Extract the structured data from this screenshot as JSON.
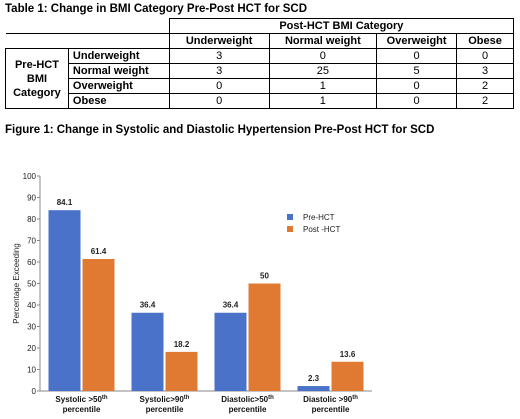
{
  "table": {
    "caption": "Table 1: Change in BMI Category Pre-Post HCT for SCD",
    "col_group_header": "Post-HCT BMI Category",
    "row_group_header": "Pre-HCT BMI Category",
    "columns": [
      "Underweight",
      "Normal weight",
      "Overweight",
      "Obese"
    ],
    "rows": [
      {
        "label": "Underweight",
        "values": [
          "3",
          "0",
          "0",
          "0"
        ]
      },
      {
        "label": "Normal weight",
        "values": [
          "3",
          "25",
          "5",
          "3"
        ]
      },
      {
        "label": "Overweight",
        "values": [
          "0",
          "1",
          "0",
          "2"
        ]
      },
      {
        "label": "Obese",
        "values": [
          "0",
          "1",
          "0",
          "2"
        ]
      }
    ]
  },
  "figure": {
    "caption": "Figure 1: Change in Systolic and Diastolic Hypertension Pre-Post HCT for SCD"
  },
  "colors": {
    "pre": "#4a72c8",
    "post": "#e07a33"
  },
  "chart_data": {
    "type": "bar",
    "title": "",
    "xlabel": "",
    "ylabel": "Percentage Exceeding",
    "ylim": [
      0,
      100
    ],
    "yticks": [
      0,
      10,
      20,
      30,
      40,
      50,
      60,
      70,
      80,
      90,
      100
    ],
    "grid": false,
    "legend_position": "right",
    "categories": [
      {
        "main": "Systolic >50",
        "sup": "th",
        "sub": "percentile"
      },
      {
        "main": "Systolic>90",
        "sup": "th",
        "sub": "percentile"
      },
      {
        "main": "Diastolic>50",
        "sup": "th",
        "sub": "percentile"
      },
      {
        "main": "Diastolic >90",
        "sup": "th",
        "sub": "percentile"
      }
    ],
    "series": [
      {
        "name": "Pre-HCT",
        "values": [
          84.1,
          36.4,
          36.4,
          2.3
        ],
        "labels": [
          "84.1",
          "36.4",
          "36.4",
          "2.3"
        ]
      },
      {
        "name": "Post -HCT",
        "values": [
          61.4,
          18.2,
          50,
          13.6
        ],
        "labels": [
          "61.4",
          "18.2",
          "50",
          "13.6"
        ]
      }
    ]
  }
}
